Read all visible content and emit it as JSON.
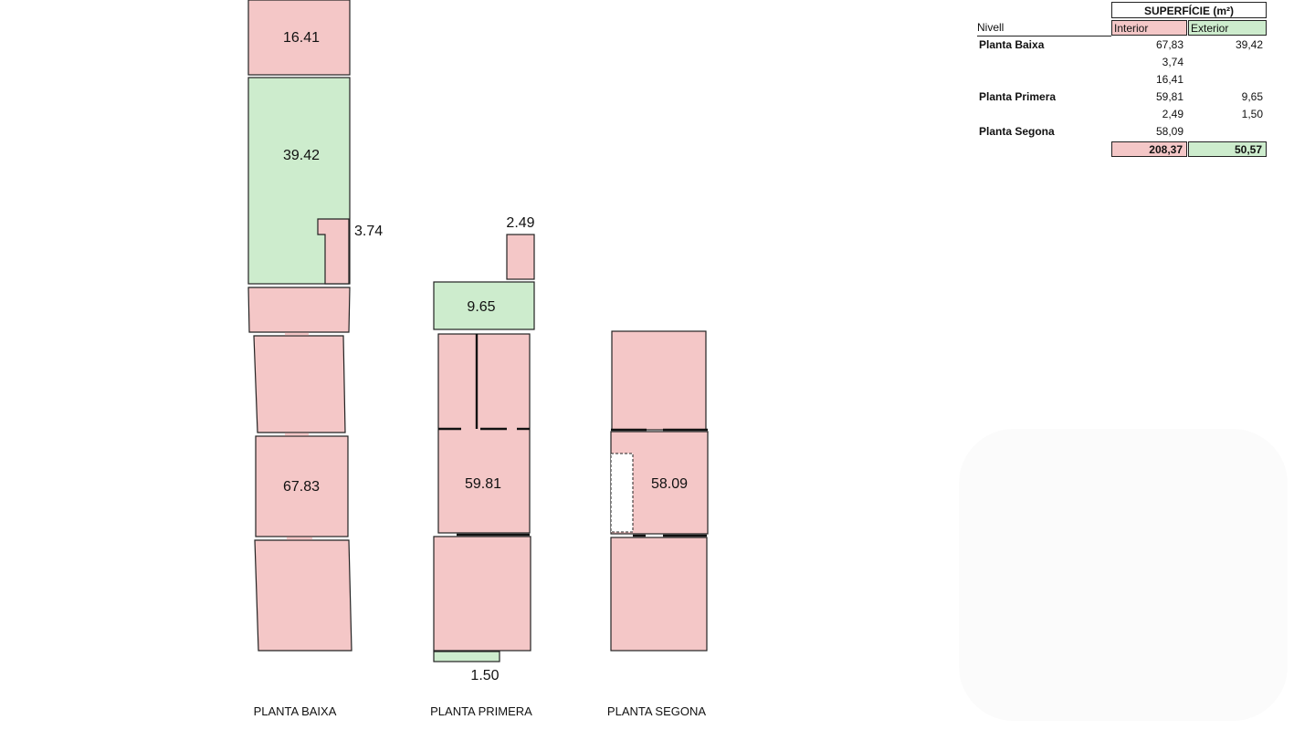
{
  "plans": [
    {
      "caption": "PLANTA BAIXA",
      "areas": [
        "16.41",
        "39.42",
        "3.74",
        "67.83"
      ]
    },
    {
      "caption": "PLANTA PRIMERA",
      "areas": [
        "2.49",
        "9.65",
        "59.81",
        "1.50"
      ]
    },
    {
      "caption": "PLANTA SEGONA",
      "areas": [
        "58.09"
      ]
    }
  ],
  "table": {
    "title": "SUPERFÍCIE (m²)",
    "col_level": "Nivell",
    "col_interior": "Interior",
    "col_exterior": "Exterior",
    "rows": [
      {
        "level": "Planta Baixa",
        "interior": "67,83",
        "exterior": "39,42"
      },
      {
        "level": "",
        "interior": "3,74",
        "exterior": ""
      },
      {
        "level": "",
        "interior": "16,41",
        "exterior": ""
      },
      {
        "level": "Planta Primera",
        "interior": "59,81",
        "exterior": "9,65"
      },
      {
        "level": "",
        "interior": "2,49",
        "exterior": "1,50"
      },
      {
        "level": "Planta Segona",
        "interior": "58,09",
        "exterior": ""
      }
    ],
    "total_interior": "208,37",
    "total_exterior": "50,57"
  },
  "colors": {
    "interior": "#f4c7c7",
    "exterior": "#cdeccd"
  }
}
